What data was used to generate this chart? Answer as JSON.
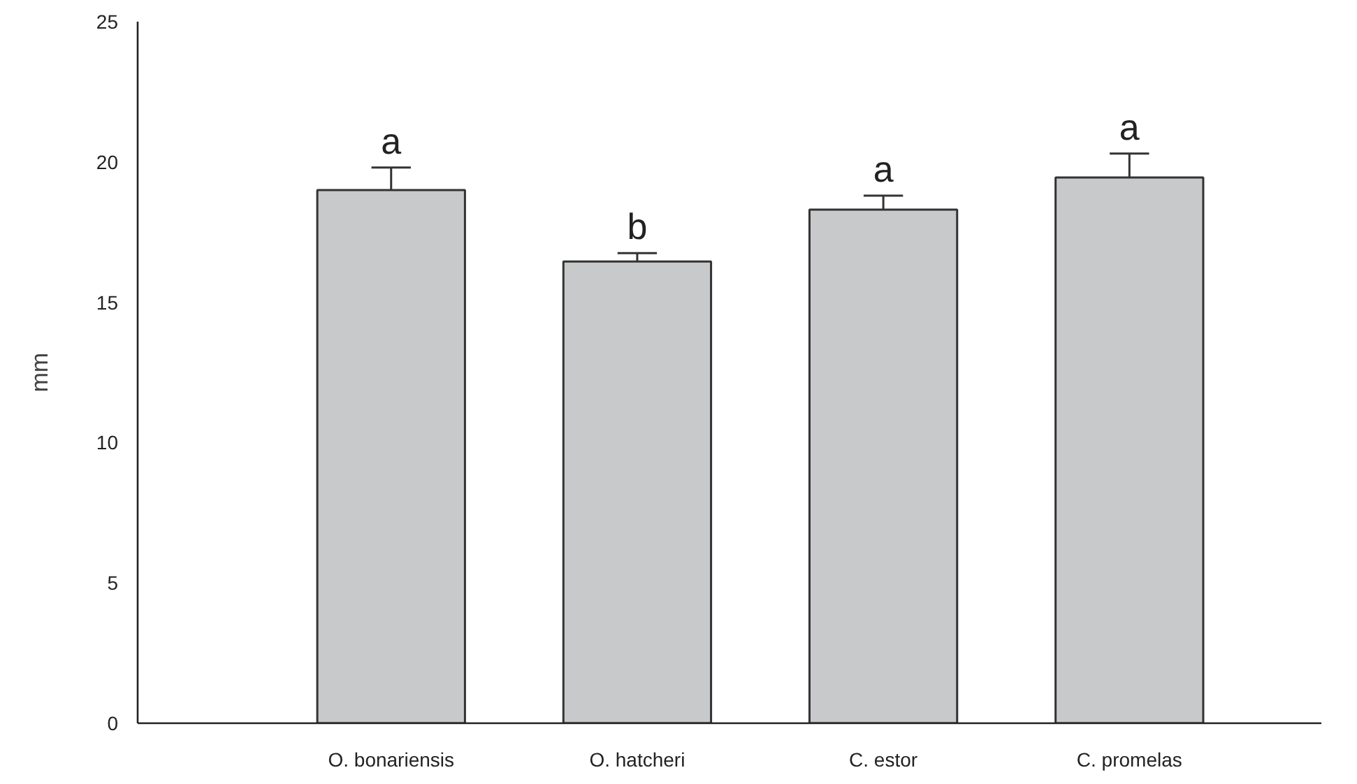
{
  "chart_data": {
    "type": "bar",
    "ylabel": "mm",
    "categories": [
      "O. bonariensis",
      "O. hatcheri",
      "C. estor",
      "C. promelas"
    ],
    "values": [
      19.0,
      16.45,
      18.3,
      19.45
    ],
    "errors": [
      0.8,
      0.3,
      0.5,
      0.85
    ],
    "color": "#c8c9cb",
    "ylim": [
      0,
      25
    ],
    "yticks": [
      0,
      5,
      10,
      15,
      20,
      25
    ],
    "grid": false,
    "annotations": [
      {
        "text": "a",
        "x": "O. bonariensis",
        "y": 19.8
      },
      {
        "text": "b",
        "x": "O. hatcheri",
        "y": 16.75
      },
      {
        "text": "a",
        "x": "C. estor",
        "y": 18.8
      },
      {
        "text": "a",
        "x": "C. promelas",
        "y": 20.3
      }
    ]
  }
}
